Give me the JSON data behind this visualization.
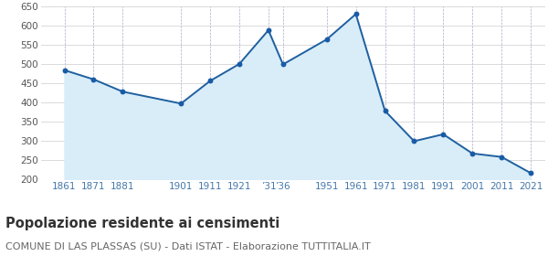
{
  "years": [
    1861,
    1871,
    1881,
    1901,
    1911,
    1921,
    1931,
    1936,
    1951,
    1961,
    1971,
    1981,
    1991,
    2001,
    2011,
    2021
  ],
  "values": [
    484,
    460,
    428,
    397,
    456,
    500,
    588,
    499,
    564,
    630,
    378,
    299,
    317,
    267,
    258,
    216
  ],
  "x_tick_positions": [
    1861,
    1871,
    1881,
    1901,
    1911,
    1921,
    1931,
    1936,
    1951,
    1961,
    1971,
    1981,
    1991,
    2001,
    2011,
    2021
  ],
  "x_tick_labels": [
    "1861",
    "1871",
    "1881",
    "1901",
    "1911",
    "1921",
    "’31",
    "’36",
    "1951",
    "1961",
    "1971",
    "1981",
    "1991",
    "2001",
    "2011",
    "2021"
  ],
  "line_color": "#2060a0",
  "fill_color": "#d8edf8",
  "marker_color": "#1a5ba6",
  "background_color": "#ffffff",
  "grid_color_h": "#cccccc",
  "grid_color_v": "#aaaacc",
  "ylim": [
    200,
    650
  ],
  "yticks": [
    200,
    250,
    300,
    350,
    400,
    450,
    500,
    550,
    600,
    650
  ],
  "xlim_left": 1853,
  "xlim_right": 2026,
  "title": "Popolazione residente ai censimenti",
  "subtitle": "COMUNE DI LAS PLASSAS (SU) - Dati ISTAT - Elaborazione TUTTITALIA.IT",
  "title_fontsize": 10.5,
  "subtitle_fontsize": 8.0,
  "title_color": "#333333",
  "subtitle_color": "#666666",
  "axis_tick_color": "#4477aa",
  "ytick_color": "#555555",
  "marker_size": 18
}
